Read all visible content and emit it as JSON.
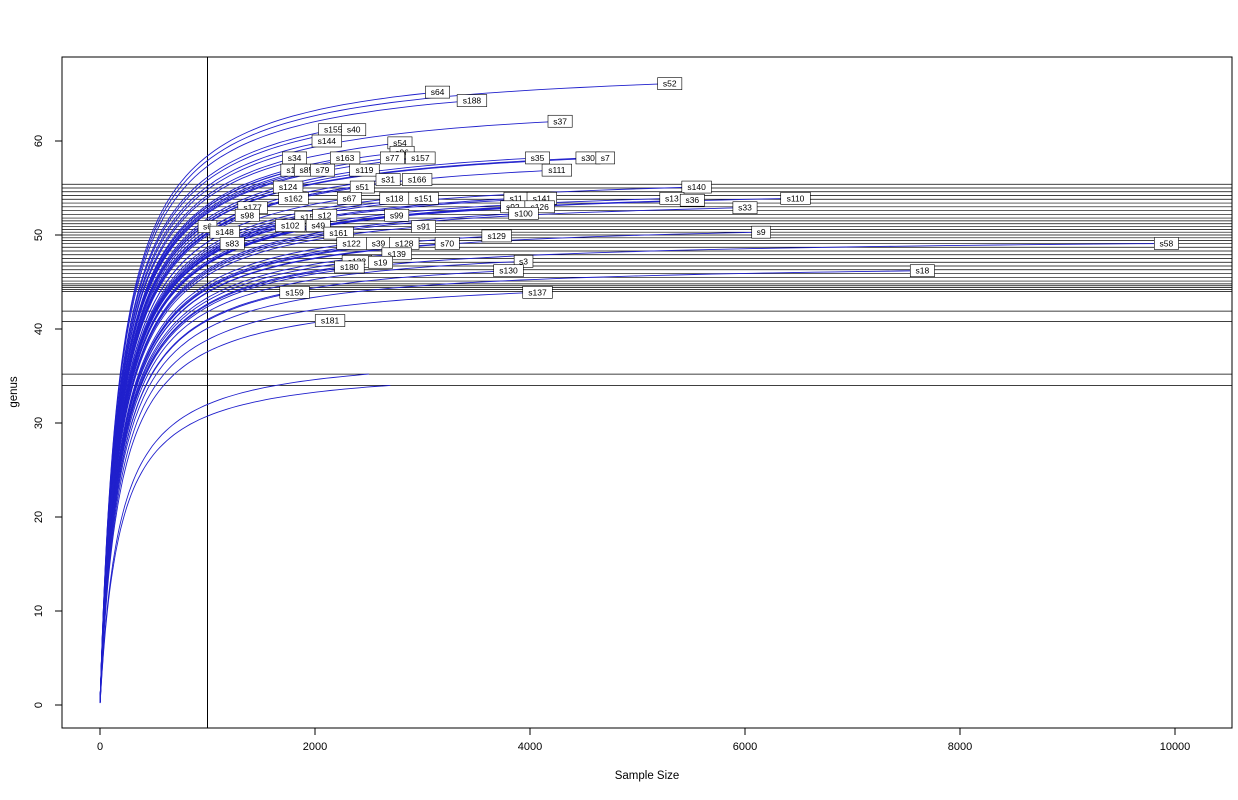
{
  "chart_data": {
    "type": "line",
    "title": "",
    "xlabel": "Sample Size",
    "ylabel": "genus",
    "x_ticks": [
      0,
      2000,
      4000,
      6000,
      8000,
      10000
    ],
    "y_ticks": [
      0,
      10,
      20,
      30,
      40,
      50,
      60
    ],
    "xlim": [
      0,
      10500
    ],
    "ylim": [
      0,
      67
    ],
    "grid": false,
    "legend": "none",
    "curve_color": "#2020cc",
    "line_color": "#000000",
    "vline_x": 1000,
    "hlines_y": [
      55.4,
      55.0,
      54.6,
      54.2,
      53.8,
      53.4,
      53.0,
      52.6,
      52.2,
      51.8,
      51.5,
      51.2,
      50.9,
      50.6,
      50.3,
      50.0,
      49.7,
      49.4,
      49.1,
      48.7,
      48.3,
      47.9,
      47.5,
      47.1,
      46.7,
      46.3,
      45.9,
      45.5,
      45.1,
      44.8,
      44.6,
      44.4,
      44.2,
      44.0,
      41.9,
      40.8,
      35.2,
      34.0
    ],
    "series": [
      {
        "name": "s52",
        "end_x": 5300,
        "end_y": 66.1
      },
      {
        "name": "s64",
        "end_x": 3140,
        "end_y": 65.2
      },
      {
        "name": "s188",
        "end_x": 3460,
        "end_y": 64.3
      },
      {
        "name": "s37",
        "end_x": 4280,
        "end_y": 62.1
      },
      {
        "name": "s155",
        "end_x": 2170,
        "end_y": 61.2
      },
      {
        "name": "s40",
        "end_x": 2360,
        "end_y": 61.2
      },
      {
        "name": "s144",
        "end_x": 2110,
        "end_y": 60.0
      },
      {
        "name": "s54",
        "end_x": 2790,
        "end_y": 59.8
      },
      {
        "name": "s96",
        "end_x": 2810,
        "end_y": 58.8
      },
      {
        "name": "s34",
        "end_x": 1810,
        "end_y": 58.2
      },
      {
        "name": "s163",
        "end_x": 2280,
        "end_y": 58.2
      },
      {
        "name": "s77",
        "end_x": 2720,
        "end_y": 58.2
      },
      {
        "name": "s157",
        "end_x": 2980,
        "end_y": 58.2
      },
      {
        "name": "s35",
        "end_x": 4070,
        "end_y": 58.2
      },
      {
        "name": "s30",
        "end_x": 4540,
        "end_y": 58.2
      },
      {
        "name": "s7",
        "end_x": 4700,
        "end_y": 58.2
      },
      {
        "name": "s185",
        "end_x": 1820,
        "end_y": 56.9
      },
      {
        "name": "s85",
        "end_x": 1920,
        "end_y": 56.9
      },
      {
        "name": "s79",
        "end_x": 2070,
        "end_y": 56.9
      },
      {
        "name": "s119",
        "end_x": 2460,
        "end_y": 56.9
      },
      {
        "name": "s111",
        "end_x": 4250,
        "end_y": 56.9
      },
      {
        "name": "s31",
        "end_x": 2680,
        "end_y": 55.9
      },
      {
        "name": "s166",
        "end_x": 2950,
        "end_y": 55.9
      },
      {
        "name": "s124",
        "end_x": 1750,
        "end_y": 55.1
      },
      {
        "name": "s51",
        "end_x": 2440,
        "end_y": 55.1
      },
      {
        "name": "s140",
        "end_x": 5550,
        "end_y": 55.1
      },
      {
        "name": "s162",
        "end_x": 1800,
        "end_y": 53.9
      },
      {
        "name": "s67",
        "end_x": 2320,
        "end_y": 53.9
      },
      {
        "name": "s118",
        "end_x": 2740,
        "end_y": 53.9
      },
      {
        "name": "s151",
        "end_x": 3010,
        "end_y": 53.9
      },
      {
        "name": "s11",
        "end_x": 3870,
        "end_y": 53.9
      },
      {
        "name": "s141",
        "end_x": 4110,
        "end_y": 53.9
      },
      {
        "name": "s13",
        "end_x": 5320,
        "end_y": 53.9
      },
      {
        "name": "s36",
        "end_x": 5510,
        "end_y": 53.7
      },
      {
        "name": "s110",
        "end_x": 6470,
        "end_y": 53.9
      },
      {
        "name": "s177",
        "end_x": 1420,
        "end_y": 52.9
      },
      {
        "name": "s92",
        "end_x": 3840,
        "end_y": 53.0
      },
      {
        "name": "s126",
        "end_x": 4090,
        "end_y": 53.0
      },
      {
        "name": "s33",
        "end_x": 6000,
        "end_y": 52.9
      },
      {
        "name": "s98",
        "end_x": 1370,
        "end_y": 52.1
      },
      {
        "name": "s156",
        "end_x": 1950,
        "end_y": 51.9
      },
      {
        "name": "s12",
        "end_x": 2090,
        "end_y": 52.1
      },
      {
        "name": "s99",
        "end_x": 2760,
        "end_y": 52.1
      },
      {
        "name": "s100",
        "end_x": 3940,
        "end_y": 52.3
      },
      {
        "name": "s6",
        "end_x": 1000,
        "end_y": 50.9
      },
      {
        "name": "s148",
        "end_x": 1160,
        "end_y": 50.3
      },
      {
        "name": "s102",
        "end_x": 1770,
        "end_y": 51.0
      },
      {
        "name": "s49",
        "end_x": 2030,
        "end_y": 51.0
      },
      {
        "name": "s161",
        "end_x": 2220,
        "end_y": 50.2
      },
      {
        "name": "s91",
        "end_x": 3010,
        "end_y": 50.9
      },
      {
        "name": "s129",
        "end_x": 3690,
        "end_y": 49.9
      },
      {
        "name": "s9",
        "end_x": 6150,
        "end_y": 50.3
      },
      {
        "name": "s83",
        "end_x": 1230,
        "end_y": 49.1
      },
      {
        "name": "s122",
        "end_x": 2340,
        "end_y": 49.1
      },
      {
        "name": "s39",
        "end_x": 2590,
        "end_y": 49.1
      },
      {
        "name": "s128",
        "end_x": 2830,
        "end_y": 49.1
      },
      {
        "name": "s70",
        "end_x": 3230,
        "end_y": 49.1
      },
      {
        "name": "s58",
        "end_x": 9920,
        "end_y": 49.1
      },
      {
        "name": "s132",
        "end_x": 2390,
        "end_y": 47.2
      },
      {
        "name": "s139",
        "end_x": 2760,
        "end_y": 48.0
      },
      {
        "name": "s19",
        "end_x": 2610,
        "end_y": 47.1
      },
      {
        "name": "s3",
        "end_x": 3940,
        "end_y": 47.2
      },
      {
        "name": "s180",
        "end_x": 2320,
        "end_y": 46.6
      },
      {
        "name": "s130",
        "end_x": 3800,
        "end_y": 46.2
      },
      {
        "name": "s18",
        "end_x": 7650,
        "end_y": 46.2
      },
      {
        "name": "s159",
        "end_x": 1810,
        "end_y": 43.9
      },
      {
        "name": "s137",
        "end_x": 4070,
        "end_y": 43.9
      },
      {
        "name": "s181",
        "end_x": 2140,
        "end_y": 40.9
      }
    ],
    "unlabeled_series": [
      {
        "end_x": 2500,
        "end_y": 35.2
      },
      {
        "end_x": 2700,
        "end_y": 34.0
      }
    ]
  }
}
